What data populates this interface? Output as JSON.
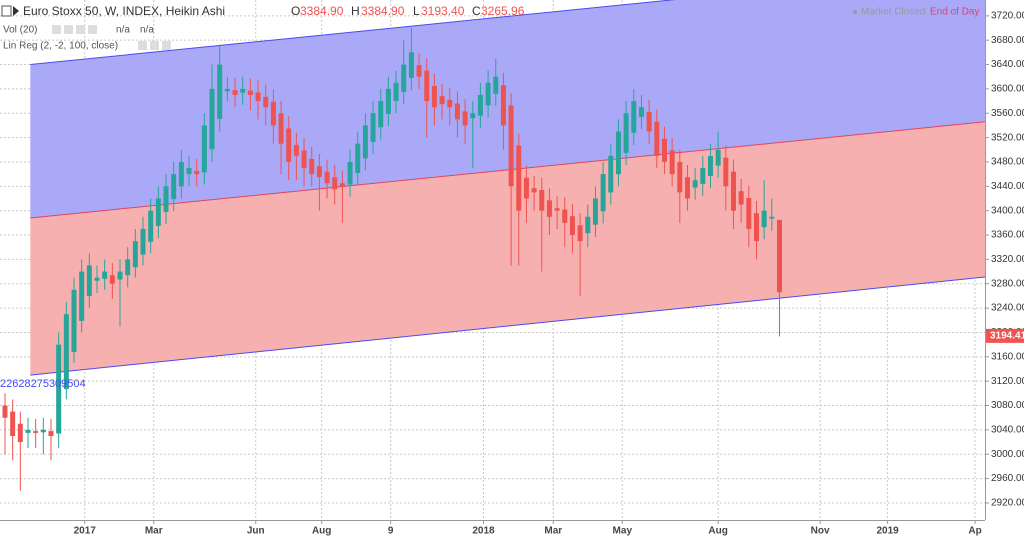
{
  "chart_data": {
    "type": "candlestick",
    "title": "Euro Stoxx 50, W, INDEX, Heikin Ashi",
    "ohlc_legend": [
      {
        "key": "O",
        "value": "3384.90"
      },
      {
        "key": "H",
        "value": "3384.90"
      },
      {
        "key": "L",
        "value": "3193.40"
      },
      {
        "key": "C",
        "value": "3265.96"
      }
    ],
    "indicators": [
      {
        "name": "Vol (20)",
        "values": [
          "n/a",
          "n/a"
        ]
      },
      {
        "name": "Lin Reg (2, -2, 100, close)"
      }
    ],
    "status": [
      "Market Closed",
      "End of Day"
    ],
    "channel_label": "22628275309504",
    "last_price": {
      "value": 3194.41,
      "label": "3194.41"
    },
    "up_color": "#26a69a",
    "down_color": "#ef5350",
    "open": [
      3080,
      3070,
      3050,
      3035,
      3038,
      3036,
      3038,
      3034,
      3107,
      3168,
      3219,
      3260,
      3285,
      3288,
      3294,
      3287,
      3294,
      3307,
      3328,
      3349,
      3375,
      3398,
      3419,
      3440,
      3460,
      3465,
      3463,
      3501,
      3551,
      3596,
      3598,
      3594,
      3597,
      3594,
      3587,
      3579,
      3560,
      3535,
      3508,
      3499,
      3485,
      3473,
      3464,
      3455,
      3445,
      3443,
      3462,
      3486,
      3513,
      3537,
      3559,
      3580,
      3595,
      3618,
      3639,
      3630,
      3605,
      3588,
      3582,
      3576,
      3563,
      3552,
      3556,
      3573,
      3592,
      3606,
      3573,
      3507,
      3454,
      3437,
      3434,
      3417,
      3404,
      3402,
      3391,
      3376,
      3363,
      3377,
      3399,
      3430,
      3460,
      3495,
      3528,
      3554,
      3562,
      3546,
      3518,
      3499,
      3480,
      3455,
      3438,
      3444,
      3457,
      3474,
      3487,
      3464,
      3432,
      3421,
      3396,
      3373,
      3387,
      3384.9
    ],
    "high": [
      3100,
      3090,
      3070,
      3060,
      3058,
      3060,
      3058,
      3200,
      3250,
      3290,
      3320,
      3330,
      3310,
      3320,
      3314,
      3320,
      3340,
      3370,
      3390,
      3420,
      3440,
      3460,
      3480,
      3500,
      3490,
      3485,
      3560,
      3640,
      3670,
      3620,
      3618,
      3620,
      3617,
      3614,
      3607,
      3599,
      3580,
      3555,
      3528,
      3519,
      3505,
      3493,
      3484,
      3475,
      3465,
      3500,
      3530,
      3560,
      3580,
      3600,
      3620,
      3630,
      3680,
      3700,
      3659,
      3650,
      3625,
      3608,
      3602,
      3596,
      3583,
      3580,
      3610,
      3630,
      3650,
      3626,
      3593,
      3527,
      3474,
      3457,
      3454,
      3437,
      3424,
      3422,
      3411,
      3396,
      3410,
      3440,
      3480,
      3510,
      3550,
      3580,
      3600,
      3590,
      3582,
      3566,
      3538,
      3519,
      3500,
      3475,
      3470,
      3490,
      3510,
      3530,
      3507,
      3484,
      3452,
      3441,
      3416,
      3450,
      3420,
      3384.9
    ],
    "low": [
      3000,
      2990,
      2940,
      3010,
      3010,
      3000,
      2990,
      3010,
      3090,
      3150,
      3200,
      3240,
      3265,
      3270,
      3255,
      3210,
      3274,
      3290,
      3310,
      3330,
      3355,
      3378,
      3399,
      3420,
      3440,
      3440,
      3443,
      3480,
      3530,
      3580,
      3570,
      3574,
      3565,
      3550,
      3540,
      3510,
      3460,
      3450,
      3450,
      3440,
      3440,
      3400,
      3420,
      3410,
      3380,
      3423,
      3442,
      3466,
      3493,
      3517,
      3539,
      3560,
      3575,
      3598,
      3600,
      3520,
      3540,
      3550,
      3540,
      3520,
      3510,
      3470,
      3536,
      3553,
      3572,
      3500,
      3310,
      3310,
      3380,
      3400,
      3300,
      3360,
      3370,
      3340,
      3330,
      3260,
      3340,
      3357,
      3379,
      3410,
      3440,
      3475,
      3508,
      3534,
      3510,
      3470,
      3460,
      3440,
      3380,
      3400,
      3418,
      3424,
      3437,
      3454,
      3400,
      3370,
      3380,
      3340,
      3320,
      3353,
      3367,
      3193.4
    ],
    "close": [
      3060,
      3030,
      3020,
      3040,
      3035,
      3040,
      3030,
      3180,
      3230,
      3270,
      3300,
      3310,
      3290,
      3300,
      3280,
      3300,
      3320,
      3350,
      3370,
      3400,
      3420,
      3440,
      3460,
      3480,
      3470,
      3460,
      3540,
      3600,
      3640,
      3600,
      3590,
      3600,
      3590,
      3580,
      3570,
      3540,
      3510,
      3480,
      3490,
      3470,
      3460,
      3455,
      3445,
      3435,
      3440,
      3480,
      3510,
      3540,
      3560,
      3580,
      3600,
      3610,
      3640,
      3660,
      3620,
      3580,
      3570,
      3575,
      3570,
      3550,
      3540,
      3560,
      3590,
      3610,
      3620,
      3540,
      3440,
      3400,
      3420,
      3430,
      3400,
      3390,
      3400,
      3380,
      3360,
      3350,
      3390,
      3420,
      3460,
      3490,
      3530,
      3560,
      3580,
      3570,
      3530,
      3490,
      3480,
      3460,
      3430,
      3420,
      3450,
      3470,
      3490,
      3500,
      3440,
      3400,
      3410,
      3370,
      3350,
      3400,
      3390,
      3265.96
    ],
    "channel": {
      "x": [
        3.3,
        127.8
      ],
      "upper": [
        3640,
        3798
      ],
      "middle": [
        3388,
        3546
      ],
      "lower": [
        3130,
        3291
      ],
      "upper_fill": "#a9a9f7",
      "lower_fill": "#f7b0b0",
      "edge_color": "#4a4af0",
      "mid_color": "#e0475a"
    },
    "xlim": [
      -0.65,
      127.8
    ],
    "xticks": [
      {
        "value": 10.4,
        "label": "2017"
      },
      {
        "value": 19.4,
        "label": "Mar"
      },
      {
        "value": 32.7,
        "label": "Jun"
      },
      {
        "value": 41.3,
        "label": "Aug"
      },
      {
        "value": 50.3,
        "label": "9"
      },
      {
        "value": 62.4,
        "label": "2018"
      },
      {
        "value": 71.5,
        "label": "Mar"
      },
      {
        "value": 80.5,
        "label": "May"
      },
      {
        "value": 93,
        "label": "Aug"
      },
      {
        "value": 106.3,
        "label": "Nov"
      },
      {
        "value": 115.1,
        "label": "2019"
      },
      {
        "value": 126.5,
        "label": "Ap"
      }
    ],
    "ylim": [
      2892,
      3746
    ],
    "yticks": [
      {
        "value": 2920,
        "label": "2920.00"
      },
      {
        "value": 2960,
        "label": "2960.00"
      },
      {
        "value": 3000,
        "label": "3000.00"
      },
      {
        "value": 3040,
        "label": "3040.00"
      },
      {
        "value": 3080,
        "label": "3080.00"
      },
      {
        "value": 3120,
        "label": "3120.00"
      },
      {
        "value": 3160,
        "label": "3160.00"
      },
      {
        "value": 3200,
        "label": "3200.00"
      },
      {
        "value": 3240,
        "label": "3240.00"
      },
      {
        "value": 3280,
        "label": "3280.00"
      },
      {
        "value": 3320,
        "label": "3320.00"
      },
      {
        "value": 3360,
        "label": "3360.00"
      },
      {
        "value": 3400,
        "label": "3400.00"
      },
      {
        "value": 3440,
        "label": "3440.00"
      },
      {
        "value": 3480,
        "label": "3480.00"
      },
      {
        "value": 3520,
        "label": "3520.00"
      },
      {
        "value": 3560,
        "label": "3560.00"
      },
      {
        "value": 3600,
        "label": "3600.00"
      },
      {
        "value": 3640,
        "label": "3640.00"
      },
      {
        "value": 3680,
        "label": "3680.00"
      },
      {
        "value": 3720,
        "label": "3720.00"
      }
    ],
    "grid": true
  }
}
